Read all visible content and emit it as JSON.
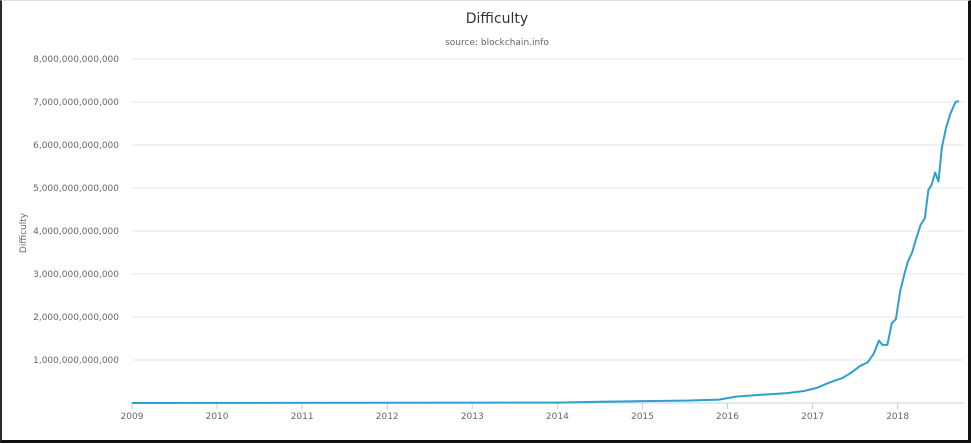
{
  "chart_data": {
    "type": "line",
    "title": "Difficulty",
    "subtitle": "source: blockchain.info",
    "xlabel": "",
    "ylabel": "Difficulty",
    "x_tick_labels": [
      "2009",
      "2010",
      "2011",
      "2012",
      "2013",
      "2014",
      "2015",
      "2016",
      "2017",
      "2018"
    ],
    "y_tick_labels": [
      "1,000,000,000,000",
      "2,000,000,000,000",
      "3,000,000,000,000",
      "4,000,000,000,000",
      "5,000,000,000,000",
      "6,000,000,000,000",
      "7,000,000,000,000",
      "8,000,000,000,000"
    ],
    "ylim": [
      0,
      8000000000000
    ],
    "xlim": [
      2009.0,
      2018.78
    ],
    "grid": true,
    "legend": "none",
    "colors": {
      "line": "#2f9fd0",
      "grid": "#e6e6e6",
      "axis": "#c0d0e0",
      "text": "#666666",
      "title": "#333333"
    },
    "series": [
      {
        "values": [
          [
            2009.0,
            0
          ],
          [
            2014.0,
            10000000000
          ],
          [
            2014.5,
            30000000000
          ],
          [
            2015.0,
            45000000000
          ],
          [
            2015.5,
            55000000000
          ],
          [
            2015.9,
            80000000000
          ],
          [
            2016.1,
            150000000000
          ],
          [
            2016.4,
            190000000000
          ],
          [
            2016.7,
            230000000000
          ],
          [
            2016.9,
            280000000000
          ],
          [
            2017.05,
            350000000000
          ],
          [
            2017.2,
            480000000000
          ],
          [
            2017.35,
            580000000000
          ],
          [
            2017.45,
            700000000000
          ],
          [
            2017.55,
            850000000000
          ],
          [
            2017.65,
            950000000000
          ],
          [
            2017.72,
            1150000000000
          ],
          [
            2017.78,
            1450000000000
          ],
          [
            2017.82,
            1350000000000
          ],
          [
            2017.88,
            1350000000000
          ],
          [
            2017.93,
            1850000000000
          ],
          [
            2017.98,
            1950000000000
          ],
          [
            2018.03,
            2600000000000
          ],
          [
            2018.08,
            3000000000000
          ],
          [
            2018.12,
            3290000000000
          ],
          [
            2018.17,
            3500000000000
          ],
          [
            2018.22,
            3840000000000
          ],
          [
            2018.27,
            4140000000000
          ],
          [
            2018.32,
            4300000000000
          ],
          [
            2018.36,
            4950000000000
          ],
          [
            2018.4,
            5080000000000
          ],
          [
            2018.44,
            5360000000000
          ],
          [
            2018.48,
            5150000000000
          ],
          [
            2018.52,
            5950000000000
          ],
          [
            2018.57,
            6400000000000
          ],
          [
            2018.62,
            6730000000000
          ],
          [
            2018.68,
            7000000000000
          ],
          [
            2018.72,
            7020000000000
          ]
        ]
      }
    ]
  }
}
